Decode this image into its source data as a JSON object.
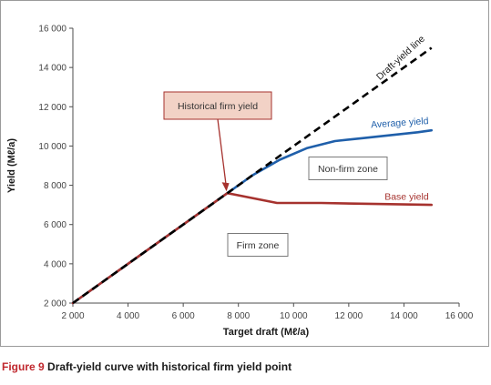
{
  "figure": {
    "label": "Figure 9",
    "caption": "Draft-yield curve with historical firm yield point"
  },
  "chart_data": {
    "type": "line",
    "xlabel": "Target draft (Mℓ/a)",
    "ylabel": "Yield (Mℓ/a)",
    "xlim": [
      2000,
      16000
    ],
    "ylim": [
      2000,
      16000
    ],
    "xticks": [
      2000,
      4000,
      6000,
      8000,
      10000,
      12000,
      14000,
      16000
    ],
    "yticks": [
      2000,
      4000,
      6000,
      8000,
      10000,
      12000,
      14000,
      16000
    ],
    "xtick_labels": [
      "2 000",
      "4 000",
      "6 000",
      "8 000",
      "10 000",
      "12 000",
      "14 000",
      "16 000"
    ],
    "ytick_labels": [
      "2 000",
      "4 000",
      "6 000",
      "8 000",
      "10 000",
      "12 000",
      "14 000",
      "16 000"
    ],
    "grid": false,
    "series": [
      {
        "name": "Draft-yield line",
        "color": "#000000",
        "style": "dashed",
        "x": [
          2000,
          15000
        ],
        "y": [
          2000,
          15000
        ]
      },
      {
        "name": "Average yield",
        "color": "#1f5faa",
        "style": "solid",
        "x": [
          2000,
          7600,
          8500,
          9500,
          10500,
          11500,
          12500,
          13500,
          14500,
          15000
        ],
        "y": [
          2000,
          7600,
          8500,
          9300,
          9900,
          10250,
          10400,
          10550,
          10700,
          10800
        ]
      },
      {
        "name": "Base yield",
        "color": "#a6322e",
        "style": "solid",
        "x": [
          2000,
          7600,
          9400,
          11000,
          13000,
          15000
        ],
        "y": [
          2000,
          7600,
          7100,
          7100,
          7050,
          7000
        ]
      }
    ],
    "annotations": [
      {
        "text": "Historical firm yield",
        "boxed": true,
        "fill": "#f2d2c6",
        "border": "#a6322e",
        "points_to": [
          7600,
          7600
        ]
      },
      {
        "text": "Non-firm zone",
        "boxed": true
      },
      {
        "text": "Firm zone",
        "boxed": true
      }
    ],
    "historical_firm_yield_point": [
      7600,
      7600
    ]
  }
}
